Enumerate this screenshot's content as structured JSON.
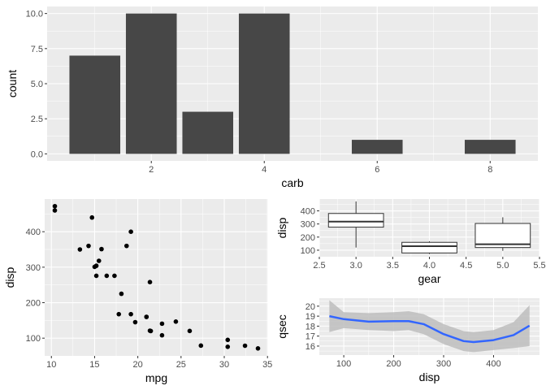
{
  "colors": {
    "panel": "#ebebeb",
    "grid": "#ffffff",
    "bar": "#474747",
    "point": "#000000",
    "smooth": "#3366ff",
    "band": "#bdbdbd"
  },
  "chart_data": [
    {
      "type": "bar",
      "xlabel": "carb",
      "ylabel": "count",
      "categories": [
        1,
        2,
        3,
        4,
        6,
        8
      ],
      "values": [
        7,
        10,
        3,
        10,
        1,
        1
      ],
      "xticks": [
        2,
        4,
        6,
        8
      ],
      "yticks": [
        0,
        2.5,
        5,
        7.5,
        10
      ],
      "ytick_labels": [
        "0.0",
        "2.5",
        "5.0",
        "7.5",
        "10.0"
      ],
      "xlim": [
        0.155,
        8.845
      ],
      "ylim": [
        -0.5,
        10.5
      ],
      "grid": true
    },
    {
      "type": "scatter",
      "xlabel": "mpg",
      "ylabel": "disp",
      "x": [
        21,
        21,
        22.8,
        21.4,
        18.7,
        18.1,
        14.3,
        24.4,
        22.8,
        19.2,
        17.8,
        16.4,
        17.3,
        15.2,
        10.4,
        10.4,
        14.7,
        32.4,
        30.4,
        33.9,
        21.5,
        15.5,
        15.2,
        13.3,
        19.2,
        27.3,
        26,
        30.4,
        15.8,
        19.7,
        15,
        21.4
      ],
      "y": [
        160,
        160,
        108,
        258,
        360,
        225,
        360,
        146.7,
        140.8,
        167.6,
        167.6,
        275.8,
        275.8,
        275.8,
        472,
        460,
        440,
        78.7,
        75.7,
        71.1,
        120.1,
        318,
        304,
        350,
        400,
        79,
        120.3,
        95.1,
        351,
        145,
        301,
        121
      ],
      "xticks": [
        10,
        15,
        20,
        25,
        30,
        35
      ],
      "yticks": [
        100,
        200,
        300,
        400
      ],
      "xlim": [
        9.225,
        35.075
      ],
      "ylim": [
        50.05,
        492.05
      ],
      "grid": true
    },
    {
      "type": "box",
      "xlabel": "gear",
      "ylabel": "disp",
      "groups": [
        {
          "x": 3,
          "min": 120.1,
          "q1": 275.8,
          "median": 318,
          "q3": 380,
          "max": 472
        },
        {
          "x": 4,
          "min": 71.1,
          "q1": 78.9,
          "median": 130.9,
          "q3": 160,
          "max": 167.6
        },
        {
          "x": 5,
          "min": 95.1,
          "q1": 120.3,
          "median": 145,
          "q3": 304,
          "max": 351
        }
      ],
      "xticks": [
        2.5,
        3.0,
        3.5,
        4.0,
        4.5,
        5.0,
        5.5
      ],
      "xtick_labels": [
        "2.5",
        "3.0",
        "3.5",
        "4.0",
        "4.5",
        "5.0",
        "5.5"
      ],
      "yticks": [
        100,
        200,
        300,
        400
      ],
      "xlim": [
        2.5,
        5.5
      ],
      "ylim": [
        50,
        490
      ],
      "grid": true
    },
    {
      "type": "line",
      "subtype": "loess smooth with confidence band",
      "xlabel": "disp",
      "ylabel": "qsec",
      "x": [
        71.1,
        100,
        150,
        200,
        230,
        260,
        300,
        340,
        360,
        400,
        440,
        472
      ],
      "y": [
        19.0,
        18.7,
        18.45,
        18.5,
        18.5,
        18.2,
        17.2,
        16.5,
        16.4,
        16.6,
        17.1,
        18.05
      ],
      "lower": [
        17.4,
        17.8,
        17.6,
        17.5,
        17.6,
        17.2,
        16.2,
        15.5,
        15.4,
        15.6,
        15.8,
        16.0
      ],
      "upper": [
        20.6,
        19.4,
        19.3,
        19.4,
        19.5,
        19.2,
        18.2,
        17.5,
        17.4,
        17.6,
        18.4,
        20.1
      ],
      "xticks": [
        100,
        200,
        300,
        400
      ],
      "yticks": [
        16,
        17,
        18,
        19,
        20
      ],
      "xlim": [
        51,
        492
      ],
      "ylim": [
        15.1,
        20.8
      ],
      "grid": true
    }
  ]
}
